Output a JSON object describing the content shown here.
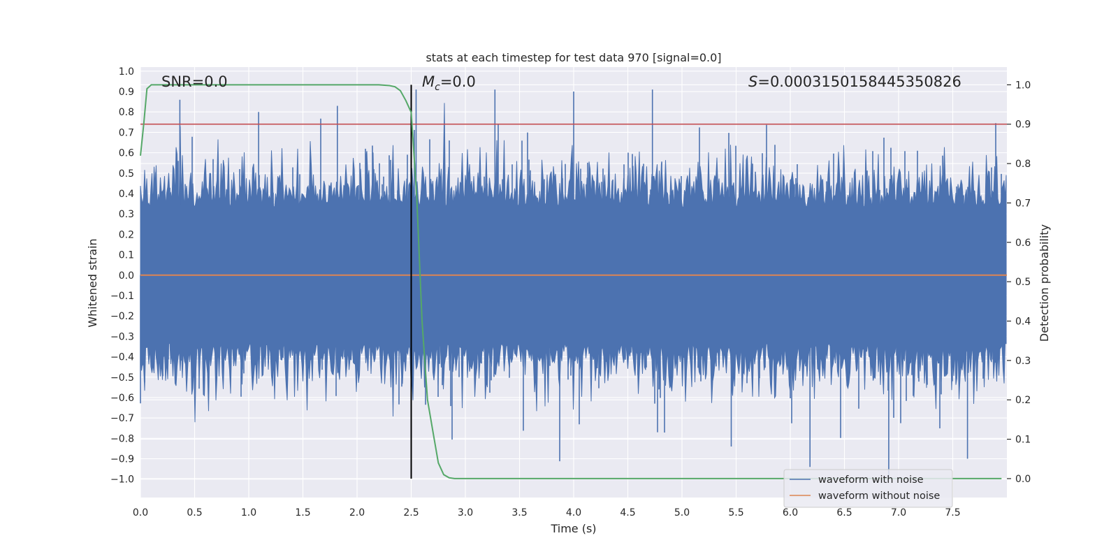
{
  "chart_data": {
    "type": "line",
    "title": "stats at each timestep for test data 970 [signal=0.0]",
    "xlabel": "Time (s)",
    "ylabel": "Whitened strain",
    "y2label": "Detection probability",
    "xlim": [
      0.0,
      8.0
    ],
    "ylim": [
      -1.09,
      1.02
    ],
    "y2lim": [
      -0.048,
      1.045
    ],
    "xticks": [
      0.0,
      0.5,
      1.0,
      1.5,
      2.0,
      2.5,
      3.0,
      3.5,
      4.0,
      4.5,
      5.0,
      5.5,
      6.0,
      6.5,
      7.0,
      7.5
    ],
    "xtick_labels": [
      "0.0",
      "0.5",
      "1.0",
      "1.5",
      "2.0",
      "2.5",
      "3.0",
      "3.5",
      "4.0",
      "4.5",
      "5.0",
      "5.5",
      "6.0",
      "6.5",
      "7.0",
      "7.5"
    ],
    "yticks": [
      1.0,
      0.9,
      0.8,
      0.7,
      0.6,
      0.5,
      0.4,
      0.3,
      0.2,
      0.1,
      0.0,
      -0.1,
      -0.2,
      -0.3,
      -0.4,
      -0.5,
      -0.6,
      -0.7,
      -0.8,
      -0.9,
      -1.0
    ],
    "ytick_labels": [
      "1.0",
      "0.9",
      "0.8",
      "0.7",
      "0.6",
      "0.5",
      "0.4",
      "0.3",
      "0.2",
      "0.1",
      "0.0",
      "−0.1",
      "−0.2",
      "−0.3",
      "−0.4",
      "−0.5",
      "−0.6",
      "−0.7",
      "−0.8",
      "−0.9",
      "−1.0"
    ],
    "y2ticks": [
      1.0,
      0.9,
      0.8,
      0.7,
      0.6,
      0.5,
      0.4,
      0.3,
      0.2,
      0.1,
      0.0
    ],
    "y2tick_labels": [
      "1.0",
      "0.9",
      "0.8",
      "0.7",
      "0.6",
      "0.5",
      "0.4",
      "0.3",
      "0.2",
      "0.1",
      "0.0"
    ],
    "noise": {
      "name": "waveform with noise",
      "color": "#4c72b0",
      "duration": 8.0,
      "core_amplitude": 0.33,
      "peak_values": [
        0.86,
        0.8,
        0.83,
        0.91,
        0.91,
        0.9,
        0.91,
        -0.84,
        -0.94,
        -1.0,
        -0.9
      ]
    },
    "clean": {
      "name": "waveform without noise",
      "color": "#dd8452",
      "x": [
        0.0,
        8.0
      ],
      "y": [
        0.0,
        0.0
      ]
    },
    "threshold": {
      "y": 0.9,
      "axis": "y2",
      "color": "#c44e52"
    },
    "marker": {
      "x": 2.5,
      "color": "#000000"
    },
    "detection": {
      "color": "#55a868",
      "x": [
        0.0,
        0.03,
        0.06,
        0.1,
        0.15,
        0.2,
        0.4,
        0.8,
        1.2,
        1.6,
        2.0,
        2.2,
        2.3,
        2.35,
        2.4,
        2.45,
        2.5,
        2.55,
        2.6,
        2.65,
        2.7,
        2.75,
        2.8,
        2.85,
        2.9,
        3.0,
        3.5,
        4.0,
        5.0,
        6.0,
        7.0,
        7.95
      ],
      "y": [
        0.82,
        0.9,
        0.99,
        1.0,
        1.0,
        1.0,
        1.0,
        1.0,
        1.0,
        1.0,
        1.0,
        1.0,
        0.998,
        0.995,
        0.985,
        0.96,
        0.93,
        0.72,
        0.4,
        0.2,
        0.12,
        0.04,
        0.01,
        0.002,
        0.0,
        0.0,
        0.0,
        0.0,
        0.0,
        0.0,
        0.0,
        0.0
      ]
    },
    "annotations": {
      "snr": "SNR=0.0",
      "mc_symbol": "M",
      "mc_sub": "c",
      "mc_value": "=0.0",
      "s_symbol": "S",
      "s_value": "=0.0003150158445350826"
    },
    "legend": {
      "position": "lower right",
      "entries": [
        {
          "label": "waveform with noise",
          "color": "#4c72b0"
        },
        {
          "label": "waveform without noise",
          "color": "#dd8452"
        }
      ]
    }
  }
}
